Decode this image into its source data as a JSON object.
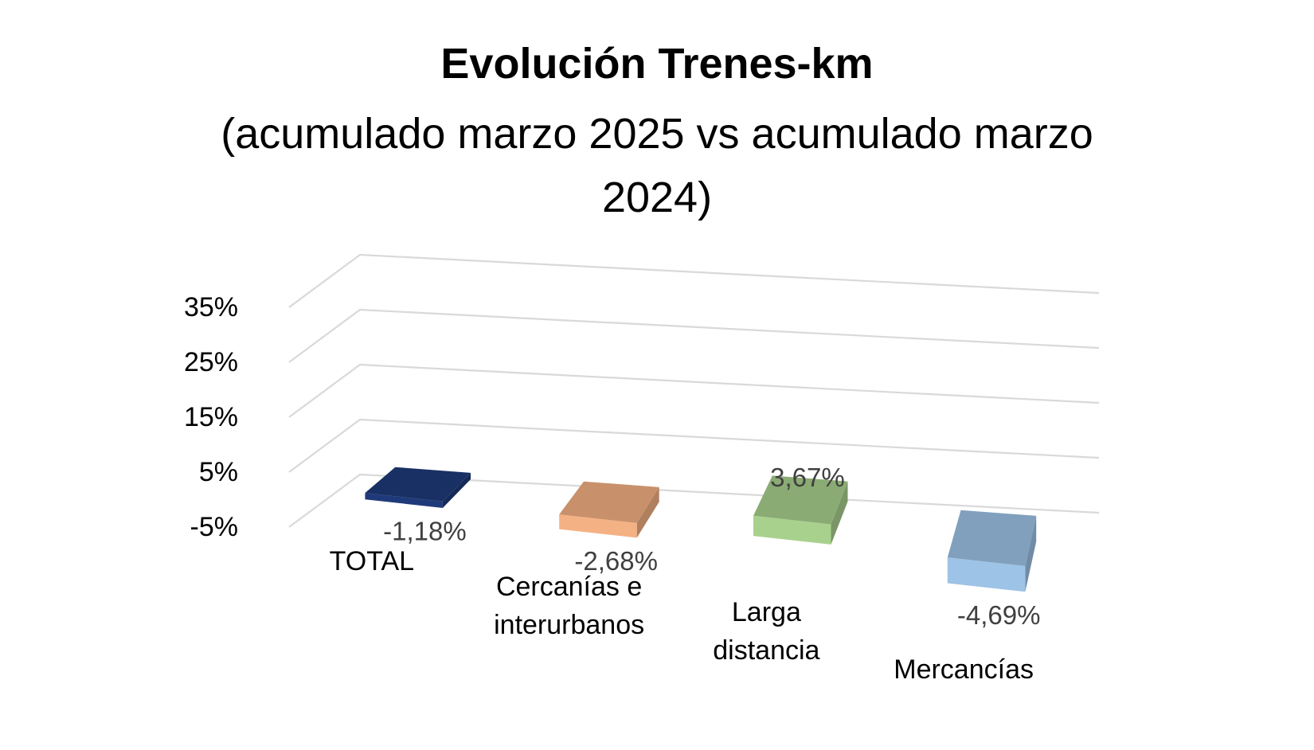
{
  "chart_data": {
    "type": "bar",
    "style": "3d-column",
    "title": "Evolución Trenes-km",
    "subtitle": "(acumulado marzo 2025 vs acumulado marzo 2024)",
    "categories": [
      "TOTAL",
      "Cercanías e interurbanos",
      "Larga distancia",
      "Mercancías"
    ],
    "category_lines": [
      [
        "TOTAL"
      ],
      [
        "Cercanías e",
        "interurbanos"
      ],
      [
        "Larga",
        "distancia"
      ],
      [
        "Mercancías"
      ]
    ],
    "values": [
      -1.18,
      -2.68,
      3.67,
      -4.69
    ],
    "data_labels": [
      "-1,18%",
      "-2,68%",
      "3,67%",
      "-4,69%"
    ],
    "y_ticks": [
      -5,
      5,
      15,
      25,
      35
    ],
    "y_tick_labels": [
      "-5%",
      "5%",
      "15%",
      "25%",
      "35%"
    ],
    "ylim": [
      -5,
      35
    ],
    "grid": true,
    "legend": "none",
    "colors": [
      "#1f3a7a",
      "#f4b183",
      "#a9d18e",
      "#9dc3e6"
    ]
  }
}
